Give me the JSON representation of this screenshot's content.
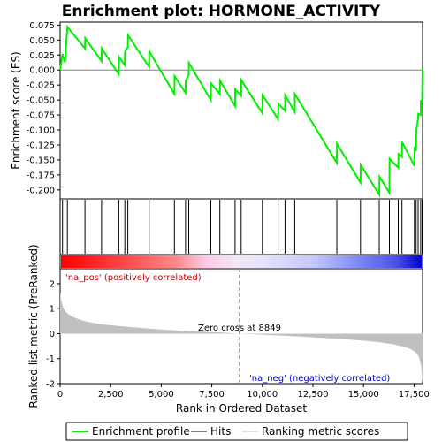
{
  "chart_data": {
    "type": "line",
    "title": "Enrichment plot: HORMONE_ACTIVITY",
    "es_panel": {
      "ylabel": "Enrichment score (ES)",
      "ylim": [
        -0.215,
        0.08
      ],
      "yticks": [
        0.075,
        0.05,
        0.025,
        0.0,
        -0.025,
        -0.05,
        -0.075,
        -0.1,
        -0.125,
        -0.15,
        -0.175,
        -0.2
      ],
      "ytick_labels": [
        "0.075",
        "0.050",
        "0.025",
        "0.000",
        "-0.025",
        "-0.050",
        "-0.075",
        "-0.100",
        "-0.125",
        "-0.150",
        "-0.175",
        "-0.200"
      ],
      "series": [
        {
          "name": "Enrichment profile",
          "color": "#00ee00",
          "x": [
            0,
            120,
            240,
            360,
            1230,
            1240,
            2050,
            2060,
            2900,
            2910,
            3200,
            3210,
            3350,
            3360,
            4400,
            4410,
            5650,
            5660,
            6200,
            6210,
            6360,
            6370,
            7450,
            7460,
            7900,
            7910,
            8650,
            8660,
            8950,
            8960,
            10000,
            10010,
            10780,
            10790,
            11120,
            11130,
            11600,
            11610,
            13680,
            13690,
            14850,
            14860,
            15780,
            15790,
            16280,
            16290,
            16720,
            16730,
            16900,
            16910,
            17520,
            17530,
            17600,
            17610,
            17700,
            17710,
            17830,
            17840,
            17900,
            17920
          ],
          "y": [
            0.0,
            0.027,
            0.013,
            0.072,
            0.036,
            0.053,
            0.015,
            0.036,
            -0.007,
            0.022,
            0.008,
            0.032,
            0.038,
            0.058,
            0.005,
            0.031,
            -0.04,
            -0.01,
            -0.038,
            -0.018,
            -0.008,
            0.012,
            -0.05,
            -0.022,
            -0.04,
            -0.018,
            -0.06,
            -0.032,
            -0.043,
            -0.017,
            -0.072,
            -0.042,
            -0.082,
            -0.056,
            -0.068,
            -0.042,
            -0.07,
            -0.04,
            -0.155,
            -0.123,
            -0.188,
            -0.158,
            -0.208,
            -0.178,
            -0.205,
            -0.148,
            -0.163,
            -0.14,
            -0.145,
            -0.12,
            -0.16,
            -0.128,
            -0.135,
            -0.102,
            -0.08,
            -0.073,
            -0.075,
            -0.05,
            -0.054,
            0.003
          ]
        }
      ]
    },
    "hits_panel": {
      "hit_positions": [
        120,
        360,
        1230,
        2050,
        2900,
        3200,
        3350,
        4400,
        5650,
        6200,
        6360,
        7450,
        7900,
        8650,
        8950,
        10000,
        10780,
        11120,
        11600,
        13680,
        14850,
        15780,
        16280,
        16720,
        16900,
        17520,
        17600,
        17700,
        17830,
        17900
      ]
    },
    "metric_panel": {
      "ylabel": "Ranked list metric (PreRanked)",
      "xlabel": "Rank in Ordered Dataset",
      "ylim": [
        -2.0,
        2.6
      ],
      "yticks": [
        2,
        1,
        0,
        -1,
        -2
      ],
      "ytick_labels": [
        "2",
        "1",
        "0",
        "-1",
        "-2"
      ],
      "xlim": [
        0,
        17920
      ],
      "xticks": [
        0,
        2500,
        5000,
        7500,
        10000,
        12500,
        15000,
        17500
      ],
      "xtick_labels": [
        "0",
        "2,500",
        "5,000",
        "7,500",
        "10,000",
        "12,500",
        "15,000",
        "17,500"
      ],
      "zero_cross_rank": 8849,
      "profile": {
        "x": [
          0,
          50,
          150,
          300,
          600,
          1000,
          1500,
          2000,
          3000,
          4000,
          5000,
          6000,
          7000,
          8000,
          8849,
          10000,
          11000,
          12000,
          13000,
          14000,
          15000,
          15500,
          16000,
          16500,
          17000,
          17300,
          17500,
          17650,
          17750,
          17850,
          17920
        ],
        "y": [
          1.65,
          1.35,
          1.05,
          0.85,
          0.68,
          0.55,
          0.45,
          0.38,
          0.3,
          0.23,
          0.17,
          0.12,
          0.08,
          0.04,
          0.0,
          -0.04,
          -0.08,
          -0.12,
          -0.17,
          -0.22,
          -0.28,
          -0.32,
          -0.37,
          -0.43,
          -0.52,
          -0.6,
          -0.7,
          -0.8,
          -0.95,
          -1.3,
          -1.95
        ]
      }
    },
    "annotations": {
      "pos_label": "'na_pos' (positively correlated)",
      "neg_label": "'na_neg' (negatively correlated)",
      "zero_cross_label": "Zero cross at 8849"
    },
    "legend": {
      "placement": "bottom",
      "items": [
        {
          "label": "Enrichment profile",
          "color": "#00ee00"
        },
        {
          "label": "Hits",
          "color": "#000000"
        },
        {
          "label": "Ranking metric scores",
          "color": "#c0c0c0"
        }
      ]
    },
    "colors": {
      "pos_text": "#cc0000",
      "neg_text": "#0000cc",
      "profile": "#00ee00",
      "metric_fill": "#c0c0c0",
      "zero_cross_line": "#a0a0a0"
    }
  }
}
